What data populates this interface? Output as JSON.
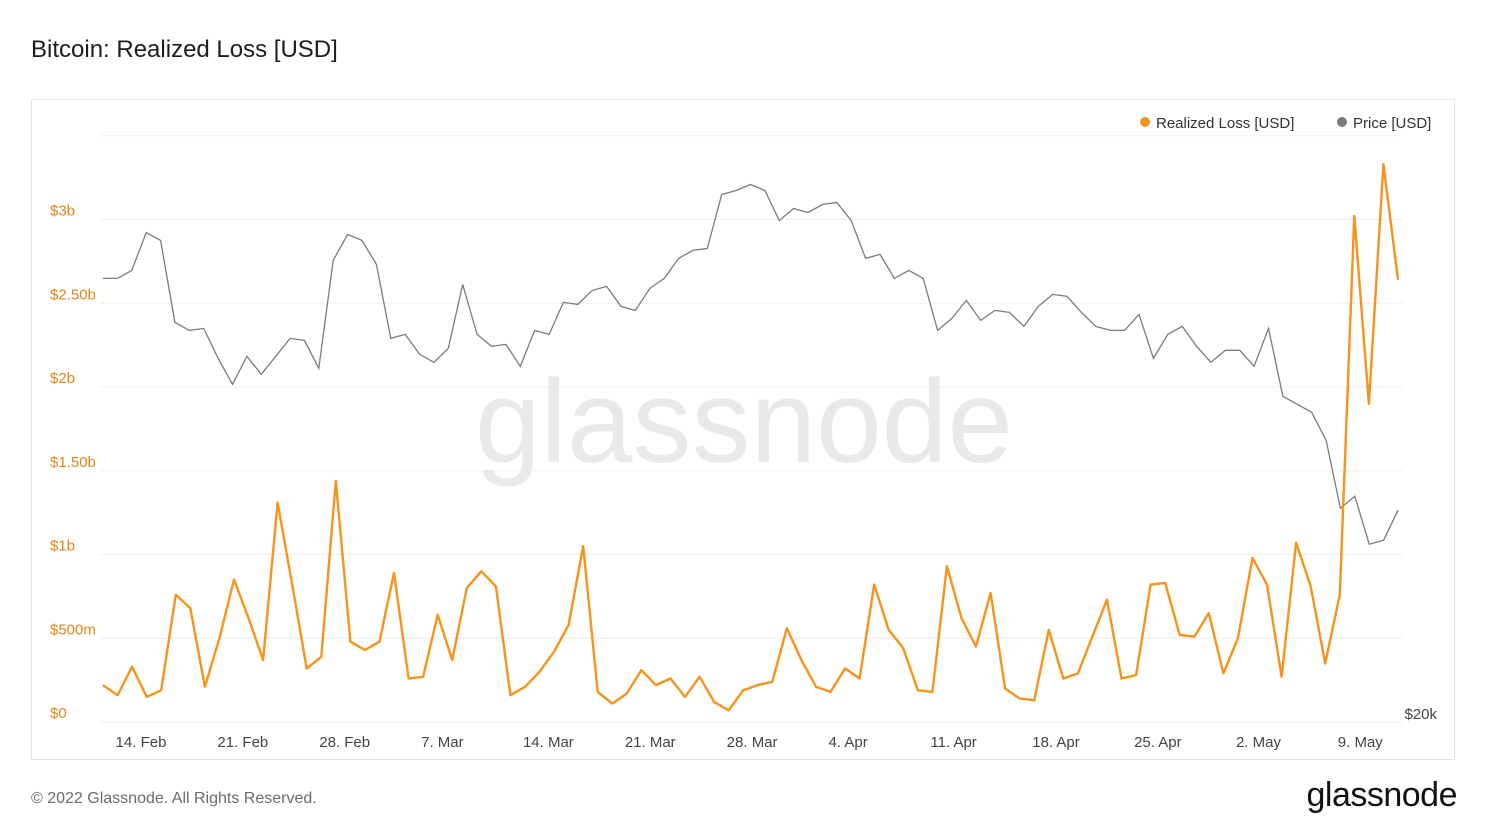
{
  "title": "Bitcoin: Realized Loss [USD]",
  "footer": {
    "copyright": "© 2022 Glassnode. All Rights Reserved.",
    "brand": "glassnode"
  },
  "watermark": "glassnode",
  "colors": {
    "loss": "#f7931a",
    "price": "#7b7b7b",
    "axis_left": "#e0851a",
    "grid": "#efefef"
  },
  "chart_data": {
    "type": "line",
    "legend_position": "top-right",
    "x_tick_labels": [
      "14. Feb",
      "21. Feb",
      "28. Feb",
      "7. Mar",
      "14. Mar",
      "21. Mar",
      "28. Mar",
      "4. Apr",
      "11. Apr",
      "18. Apr",
      "25. Apr",
      "2. May",
      "9. May"
    ],
    "x_start": "2022-02-13",
    "y_left": {
      "ticks": [
        "$0",
        "$500m",
        "$1b",
        "$1.50b",
        "$2b",
        "$2.50b",
        "$3b"
      ],
      "range": [
        0,
        3.5
      ],
      "unit": "billions USD"
    },
    "y_right": {
      "visible_tick": "$20k",
      "note": "price axis, only lowest tick visible"
    },
    "series": [
      {
        "name": "Realized Loss [USD]",
        "unit": "billions USD",
        "values": [
          0.22,
          0.16,
          0.33,
          0.15,
          0.19,
          0.76,
          0.68,
          0.21,
          0.5,
          0.85,
          0.62,
          0.37,
          1.31,
          0.82,
          0.32,
          0.39,
          1.44,
          0.48,
          0.43,
          0.48,
          0.89,
          0.26,
          0.27,
          0.64,
          0.37,
          0.8,
          0.9,
          0.81,
          0.16,
          0.21,
          0.3,
          0.42,
          0.58,
          1.05,
          0.18,
          0.11,
          0.17,
          0.31,
          0.22,
          0.26,
          0.15,
          0.27,
          0.12,
          0.07,
          0.19,
          0.22,
          0.24,
          0.56,
          0.37,
          0.21,
          0.18,
          0.32,
          0.26,
          0.82,
          0.55,
          0.44,
          0.19,
          0.18,
          0.93,
          0.62,
          0.45,
          0.77,
          0.2,
          0.14,
          0.13,
          0.55,
          0.26,
          0.29,
          0.51,
          0.73,
          0.26,
          0.28,
          0.82,
          0.83,
          0.52,
          0.51,
          0.65,
          0.29,
          0.5,
          0.98,
          0.82,
          0.27,
          1.07,
          0.81,
          0.35,
          0.76,
          3.02,
          1.9,
          3.33,
          2.64
        ]
      },
      {
        "name": "Price [USD]",
        "unit": "USD",
        "values": [
          42200,
          42200,
          42600,
          44500,
          44100,
          40000,
          39600,
          39700,
          38200,
          36900,
          38300,
          37400,
          38300,
          39200,
          39100,
          37700,
          43100,
          44400,
          44100,
          42900,
          39200,
          39400,
          38400,
          38000,
          38700,
          41900,
          39400,
          38800,
          38900,
          37800,
          39600,
          39400,
          41000,
          40900,
          41600,
          41800,
          40800,
          40600,
          41700,
          42200,
          43200,
          43600,
          43700,
          46400,
          46600,
          46900,
          46600,
          45100,
          45700,
          45500,
          45900,
          46000,
          45100,
          43200,
          43400,
          42200,
          42600,
          42200,
          39600,
          40200,
          41100,
          40100,
          40600,
          40500,
          39800,
          40800,
          41400,
          41300,
          40500,
          39800,
          39600,
          39600,
          40400,
          38200,
          39400,
          39800,
          38800,
          38000,
          38600,
          38600,
          37800,
          39700,
          36300,
          35900,
          35500,
          34100,
          30700,
          31300,
          28900,
          29100,
          30600
        ]
      }
    ]
  }
}
